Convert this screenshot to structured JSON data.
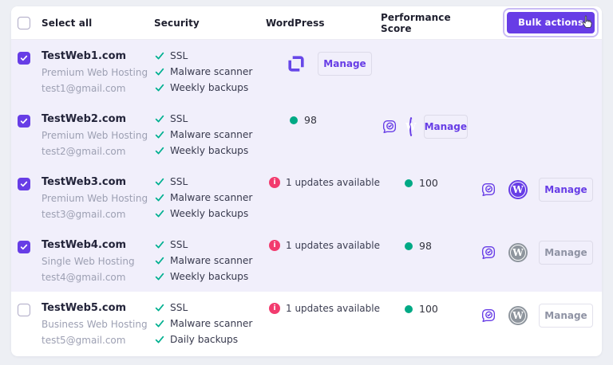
{
  "colors": {
    "accent": "#673de6",
    "success_check": "#00b090",
    "success_dot": "#00a985",
    "danger": "#f23b6e",
    "wordpress_gray": "#8e959d",
    "page_background": "#edeff4",
    "selected_row_background": "#f1effb"
  },
  "header": {
    "select_all": "Select all",
    "select_all_checked": false,
    "columns": [
      "Security",
      "WordPress",
      "Performance Score"
    ],
    "bulk_actions_label": "Bulk actions"
  },
  "rows": [
    {
      "domain": "TestWeb1.com",
      "plan": "Premium Web Hosting",
      "email": "test1@gmail.com",
      "checked": true,
      "security": [
        "SSL",
        "Malware scanner",
        "Weekly backups"
      ],
      "wordpress_updates": "",
      "performance": "",
      "builder_icon": true,
      "chat_icon": false,
      "wordpress_icon": null,
      "manage_label": "Manage",
      "manage_style": "primary"
    },
    {
      "domain": "TestWeb2.com",
      "plan": "Premium Web Hosting",
      "email": "test2@gmail.com",
      "checked": true,
      "security": [
        "SSL",
        "Malware scanner",
        "Weekly backups"
      ],
      "wordpress_updates": "",
      "performance": "98",
      "builder_icon": false,
      "chat_icon": true,
      "wordpress_icon": "purple",
      "manage_label": "Manage",
      "manage_style": "primary"
    },
    {
      "domain": "TestWeb3.com",
      "plan": "Premium Web Hosting",
      "email": "test3@gmail.com",
      "checked": true,
      "security": [
        "SSL",
        "Malware scanner",
        "Weekly backups"
      ],
      "wordpress_updates": "1 updates available",
      "performance": "100",
      "builder_icon": false,
      "chat_icon": true,
      "wordpress_icon": "purple",
      "manage_label": "Manage",
      "manage_style": "primary"
    },
    {
      "domain": "TestWeb4.com",
      "plan": "Single Web Hosting",
      "email": "test4@gmail.com",
      "checked": true,
      "security": [
        "SSL",
        "Malware scanner",
        "Weekly backups"
      ],
      "wordpress_updates": "1 updates available",
      "performance": "98",
      "builder_icon": false,
      "chat_icon": true,
      "wordpress_icon": "gray",
      "manage_label": "Manage",
      "manage_style": "muted"
    },
    {
      "domain": "TestWeb5.com",
      "plan": "Business Web Hosting",
      "email": "test5@gmail.com",
      "checked": false,
      "security": [
        "SSL",
        "Malware scanner",
        "Daily backups"
      ],
      "wordpress_updates": "1 updates available",
      "performance": "100",
      "builder_icon": false,
      "chat_icon": true,
      "wordpress_icon": "gray",
      "manage_label": "Manage",
      "manage_style": "muted"
    }
  ]
}
